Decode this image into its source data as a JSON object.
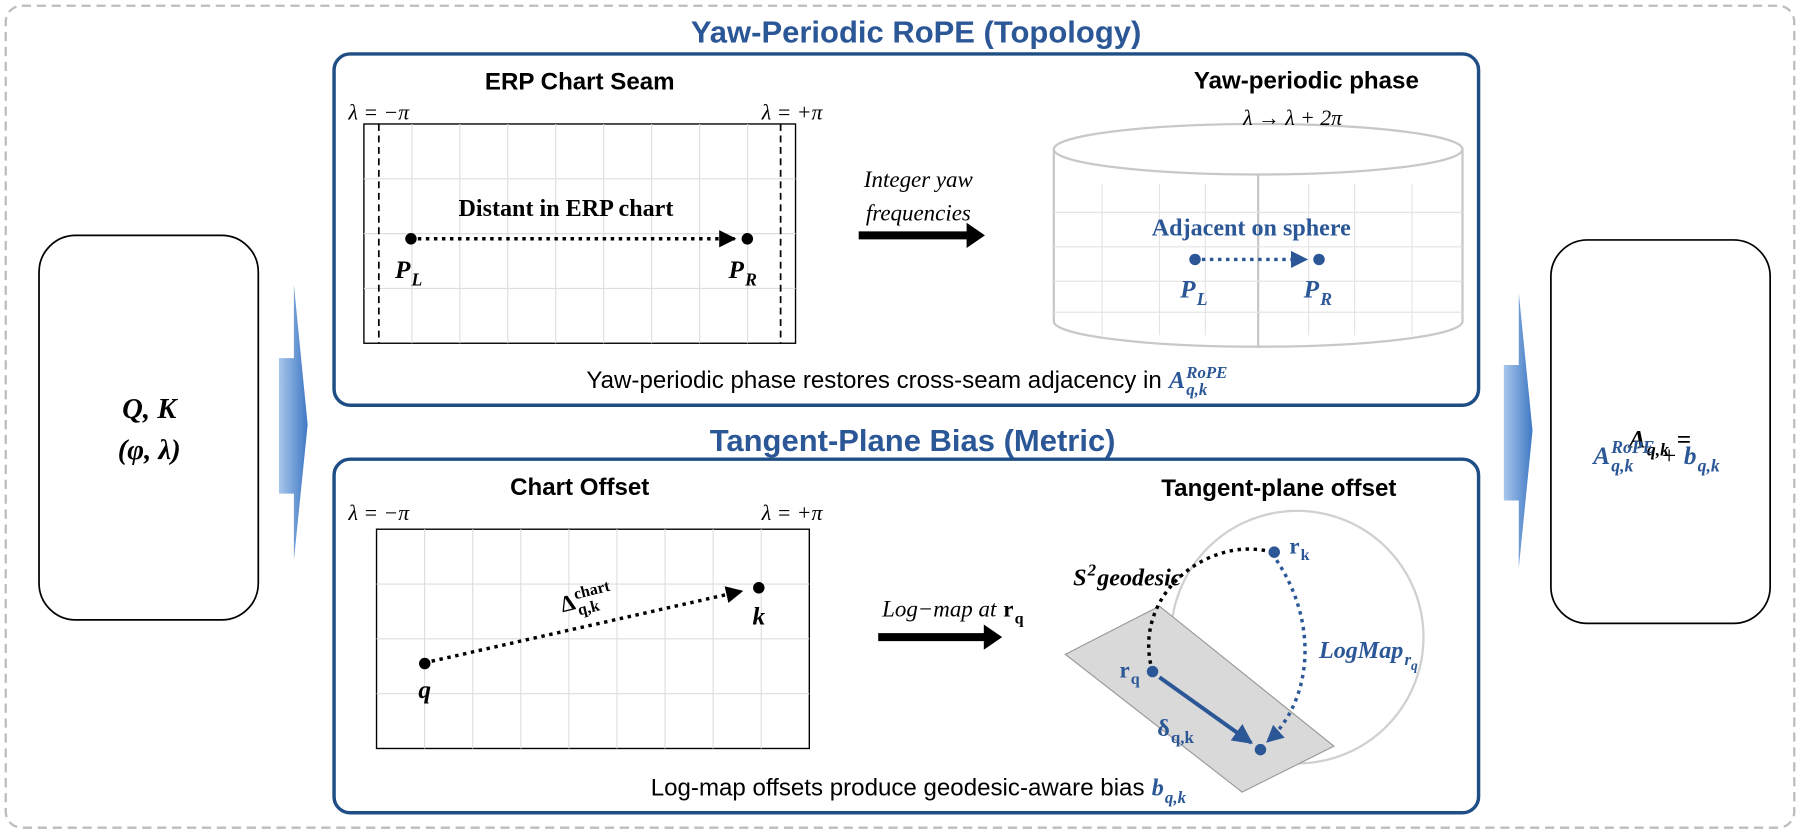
{
  "top_panel": {
    "title": "Yaw-Periodic RoPE (Topology)",
    "chart": {
      "title": "ERP Chart Seam",
      "lambda_left": "λ = −π",
      "lambda_right": "λ = +π",
      "annotation": "Distant in ERP chart",
      "point_left": {
        "base": "P",
        "sub": "L"
      },
      "point_right": {
        "base": "P",
        "sub": "R"
      }
    },
    "transform_label": [
      "Integer yaw",
      "frequencies"
    ],
    "sphere": {
      "title": "Yaw-periodic phase",
      "formula": "λ → λ + 2π",
      "annotation": "Adjacent on sphere",
      "point_left": {
        "base": "P",
        "sub": "L"
      },
      "point_right": {
        "base": "P",
        "sub": "R"
      }
    },
    "caption": {
      "text": "Yaw-periodic phase restores cross-seam adjacency in",
      "term": {
        "base": "A",
        "sup": "RoPE",
        "sub": "q,k"
      }
    }
  },
  "bottom_panel": {
    "title": "Tangent-Plane Bias (Metric)",
    "chart": {
      "title": "Chart Offset",
      "lambda_left": "λ = −π",
      "lambda_right": "λ = +π",
      "offset_label": {
        "base": "Δ",
        "sup": "chart",
        "sub": "q,k"
      },
      "query": "q",
      "key": "k"
    },
    "transform_label": [
      "Log−map at",
      {
        "base": "r",
        "sub": "q"
      }
    ],
    "sphere": {
      "title": "Tangent-plane offset",
      "geodesic_label": {
        "base": "S",
        "sup": "2",
        "after": "geodesic"
      },
      "key_point": {
        "base": "r",
        "sub": "k"
      },
      "query_point": {
        "base": "r",
        "sub": "q"
      },
      "logmap_label": {
        "base": "LogMap",
        "sub": "r",
        "subsub": "q"
      },
      "offset_label": {
        "base": "δ",
        "sub": "q,k"
      }
    },
    "caption": {
      "text": "Log-map offsets produce geodesic-aware bias",
      "term": {
        "base": "b",
        "sub": "q,k"
      }
    }
  },
  "input": {
    "line1": "Q, K",
    "line2": "(φ, λ)"
  },
  "output": {
    "line1": [
      {
        "base": "A",
        "sub": "q,k"
      },
      "="
    ],
    "line2": [
      {
        "base": "A",
        "sup": "RoPE",
        "sub": "q,k"
      },
      "+",
      {
        "base": "b",
        "sub": "q,k"
      }
    ]
  }
}
